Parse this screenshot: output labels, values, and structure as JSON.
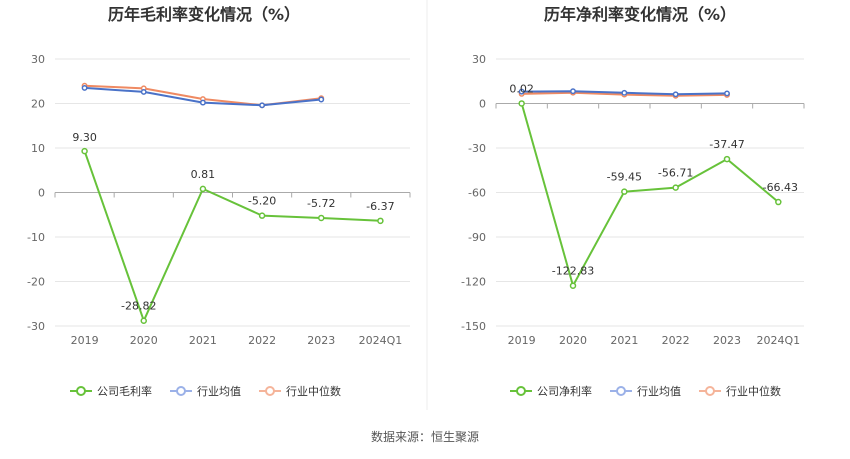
{
  "source_note": "数据来源：恒生聚源",
  "colors": {
    "company": "#67c23a",
    "industry_avg": "#4a72c8",
    "industry_median": "#ef8a62",
    "legend_avg": "#9bb1e8",
    "legend_median": "#f5b49a",
    "grid": "#e6e6e6",
    "axis": "#aaaaaa",
    "tick": "#666666",
    "divider": "#eeeeee"
  },
  "chart_data": [
    {
      "type": "line",
      "title": "历年毛利率变化情况（%）",
      "xlabel": "",
      "ylabel": "",
      "categories": [
        "2019",
        "2020",
        "2021",
        "2022",
        "2023",
        "2024Q1"
      ],
      "ylim": [
        -30,
        30
      ],
      "yticks": [
        30,
        20,
        10,
        0,
        -10,
        -20,
        -30
      ],
      "grid": true,
      "legend_position": "bottom",
      "series": [
        {
          "name": "公司毛利率",
          "values": [
            9.3,
            -28.82,
            0.81,
            -5.2,
            -5.72,
            -6.37
          ],
          "labels": [
            "9.30",
            "-28.82",
            "0.81",
            "-5.20",
            "-5.72",
            "-6.37"
          ]
        },
        {
          "name": "行业均值",
          "values": [
            23.5,
            22.6,
            20.2,
            19.6,
            20.9,
            null
          ]
        },
        {
          "name": "行业中位数",
          "values": [
            24.0,
            23.4,
            21.0,
            19.6,
            21.2,
            null
          ]
        }
      ]
    },
    {
      "type": "line",
      "title": "历年净利率变化情况（%）",
      "xlabel": "",
      "ylabel": "",
      "categories": [
        "2019",
        "2020",
        "2021",
        "2022",
        "2023",
        "2024Q1"
      ],
      "ylim": [
        -150,
        30
      ],
      "yticks": [
        30,
        0,
        -30,
        -60,
        -90,
        -120,
        -150
      ],
      "grid": true,
      "legend_position": "bottom",
      "series": [
        {
          "name": "公司净利率",
          "values": [
            0.02,
            -122.83,
            -59.45,
            -56.71,
            -37.47,
            -66.43
          ],
          "labels": [
            "0.02",
            "-122.83",
            "-59.45",
            "-56.71",
            "-37.47",
            "-66.43"
          ]
        },
        {
          "name": "行业均值",
          "values": [
            8.0,
            8.3,
            7.2,
            6.2,
            6.8,
            null
          ]
        },
        {
          "name": "行业中位数",
          "values": [
            6.5,
            7.3,
            6.0,
            5.2,
            5.8,
            null
          ]
        }
      ]
    }
  ]
}
